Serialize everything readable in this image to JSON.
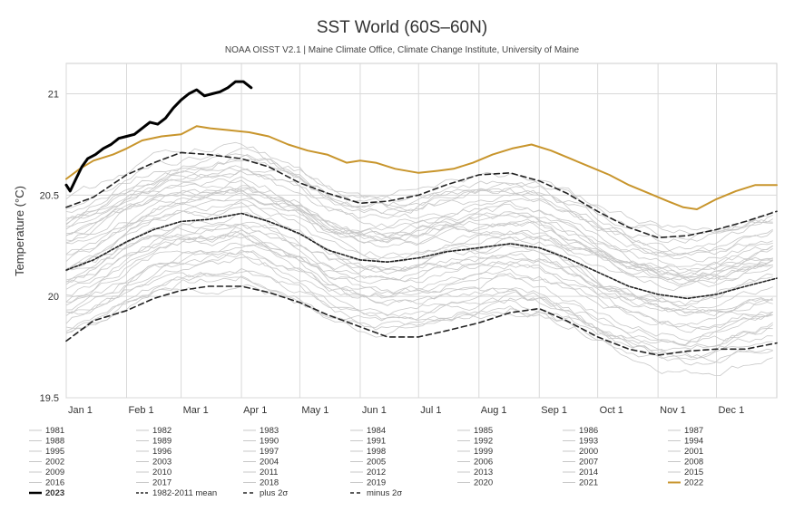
{
  "chart_data": {
    "type": "line",
    "title": "SST World (60S–60N)",
    "subtitle": "NOAA OISST V2.1 | Maine Climate Office, Climate Change Institute, University of Maine",
    "xlabel": "",
    "ylabel": "Temperature (°C)",
    "xlim": [
      1,
      366
    ],
    "ylim": [
      19.5,
      21.15
    ],
    "y_ticks": [
      19.5,
      20,
      20.5,
      21
    ],
    "y_tick_labels": [
      "19.5",
      "20",
      "20.5",
      "21"
    ],
    "x_ticks": [
      1,
      32,
      60,
      91,
      121,
      152,
      182,
      213,
      244,
      274,
      305,
      335
    ],
    "x_tick_labels": [
      "Jan 1",
      "Feb 1",
      "Mar 1",
      "Apr 1",
      "May 1",
      "Jun 1",
      "Jul 1",
      "Aug 1",
      "Sep 1",
      "Oct 1",
      "Nov 1",
      "Dec 1"
    ],
    "grid": true,
    "legend_placement": "bottom",
    "colors": {
      "years": "#c8c8c8",
      "highlight_2023": "#000000",
      "highlight_2022": "#c8952c",
      "stats": "#222222"
    },
    "series": [
      {
        "name": "1982-2011 mean",
        "style": "dashed",
        "x": [
          1,
          15,
          32,
          46,
          60,
          74,
          91,
          105,
          121,
          135,
          152,
          166,
          182,
          196,
          213,
          229,
          244,
          258,
          274,
          290,
          305,
          320,
          335,
          350,
          366
        ],
        "y": [
          20.13,
          20.18,
          20.27,
          20.33,
          20.37,
          20.38,
          20.41,
          20.37,
          20.31,
          20.23,
          20.18,
          20.17,
          20.19,
          20.22,
          20.24,
          20.26,
          20.24,
          20.19,
          20.12,
          20.05,
          20.01,
          19.99,
          20.01,
          20.05,
          20.09
        ]
      },
      {
        "name": "plus 2σ",
        "style": "dashed",
        "x": [
          1,
          15,
          32,
          46,
          60,
          74,
          91,
          105,
          121,
          135,
          152,
          166,
          182,
          196,
          213,
          229,
          244,
          258,
          274,
          290,
          305,
          320,
          335,
          350,
          366
        ],
        "y": [
          20.44,
          20.49,
          20.6,
          20.66,
          20.71,
          20.7,
          20.68,
          20.64,
          20.56,
          20.51,
          20.46,
          20.47,
          20.5,
          20.55,
          20.6,
          20.61,
          20.57,
          20.51,
          20.42,
          20.34,
          20.29,
          20.3,
          20.33,
          20.37,
          20.42
        ]
      },
      {
        "name": "minus 2σ",
        "style": "dashed",
        "x": [
          1,
          15,
          32,
          46,
          60,
          74,
          91,
          105,
          121,
          135,
          152,
          166,
          182,
          196,
          213,
          229,
          244,
          258,
          274,
          290,
          305,
          320,
          335,
          350,
          366
        ],
        "y": [
          19.78,
          19.88,
          19.93,
          19.99,
          20.03,
          20.05,
          20.05,
          20.02,
          19.97,
          19.91,
          19.85,
          19.8,
          19.8,
          19.83,
          19.87,
          19.92,
          19.94,
          19.88,
          19.8,
          19.74,
          19.71,
          19.73,
          19.74,
          19.74,
          19.77
        ]
      },
      {
        "name": "2022",
        "style": "highlight",
        "x": [
          1,
          8,
          15,
          25,
          32,
          40,
          50,
          60,
          68,
          75,
          85,
          95,
          105,
          115,
          125,
          135,
          145,
          152,
          160,
          170,
          182,
          192,
          200,
          210,
          220,
          230,
          240,
          250,
          260,
          270,
          280,
          290,
          300,
          310,
          318,
          325,
          335,
          345,
          355,
          366
        ],
        "y": [
          20.58,
          20.63,
          20.67,
          20.7,
          20.73,
          20.77,
          20.79,
          20.8,
          20.84,
          20.83,
          20.82,
          20.81,
          20.79,
          20.75,
          20.72,
          20.7,
          20.66,
          20.67,
          20.66,
          20.63,
          20.61,
          20.62,
          20.63,
          20.66,
          20.7,
          20.73,
          20.75,
          20.72,
          20.68,
          20.64,
          20.6,
          20.55,
          20.51,
          20.47,
          20.44,
          20.43,
          20.48,
          20.52,
          20.55,
          20.55
        ]
      },
      {
        "name": "2023",
        "style": "highlight",
        "x": [
          1,
          3,
          6,
          9,
          12,
          16,
          20,
          24,
          28,
          32,
          36,
          40,
          44,
          48,
          52,
          56,
          60,
          64,
          68,
          72,
          76,
          80,
          84,
          88,
          92,
          96
        ],
        "y": [
          20.55,
          20.52,
          20.58,
          20.64,
          20.68,
          20.7,
          20.73,
          20.75,
          20.78,
          20.79,
          20.8,
          20.83,
          20.86,
          20.85,
          20.88,
          20.93,
          20.97,
          21.0,
          21.02,
          20.99,
          21.0,
          21.01,
          21.03,
          21.06,
          21.06,
          21.03
        ]
      }
    ],
    "legend": [
      "1981",
      "1982",
      "1983",
      "1984",
      "1985",
      "1986",
      "1987",
      "1988",
      "1989",
      "1990",
      "1991",
      "1992",
      "1993",
      "1994",
      "1995",
      "1996",
      "1997",
      "1998",
      "1999",
      "2000",
      "2001",
      "2002",
      "2003",
      "2004",
      "2005",
      "2006",
      "2007",
      "2008",
      "2009",
      "2010",
      "2011",
      "2012",
      "2013",
      "2014",
      "2015",
      "2016",
      "2017",
      "2018",
      "2019",
      "2020",
      "2021",
      "2022",
      "2023",
      "1982-2011 mean",
      "plus 2σ",
      "minus 2σ"
    ]
  }
}
